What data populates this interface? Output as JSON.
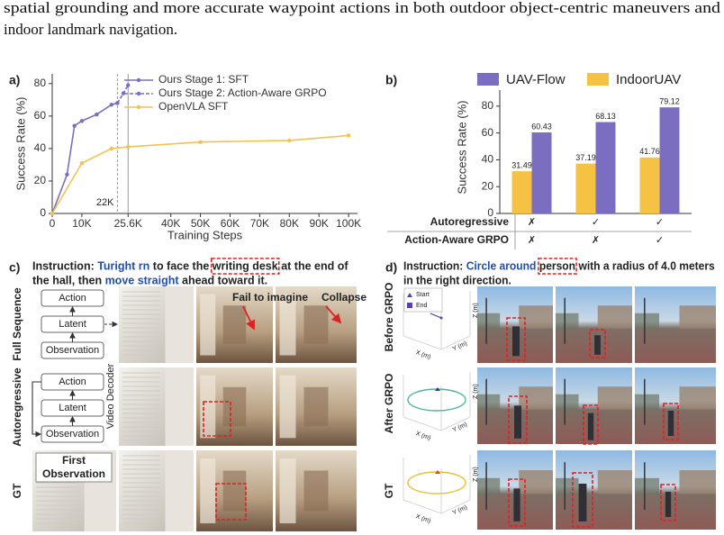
{
  "text": {
    "lines": [
      "spatial grounding and more accurate waypoint actions in both outdoor object-centric maneuvers and",
      "indoor landmark navigation."
    ]
  },
  "chart_data": [
    {
      "type": "line",
      "label": "a)",
      "xlabel": "Training Steps",
      "ylabel": "Success Rate (%)",
      "series": [
        {
          "name": "Ours Stage 1: SFT",
          "color": "#7b6ec0",
          "style": "solid",
          "x": [
            0,
            5000,
            7500,
            10000,
            15000,
            20000,
            22000
          ],
          "values": [
            0,
            24,
            54,
            57,
            61,
            67,
            68
          ]
        },
        {
          "name": "Ours Stage 2: Action-Aware GRPO",
          "color": "#7b6ec0",
          "style": "dashed",
          "x": [
            22000,
            24000,
            25600
          ],
          "values": [
            68,
            74,
            79
          ]
        },
        {
          "name": "OpenVLA SFT",
          "color": "#f3c14d",
          "style": "solid",
          "x": [
            0,
            10000,
            20000,
            25600,
            50000,
            80000,
            100000
          ],
          "values": [
            0,
            31,
            40,
            41,
            44,
            45,
            48
          ]
        }
      ],
      "xlim": [
        0,
        103000
      ],
      "ylim": [
        0,
        86
      ],
      "xticks": [
        0,
        {
          "value": 10000,
          "label": "10K"
        },
        {
          "value": 25600,
          "label": "25.6K"
        },
        {
          "value": 40000,
          "label": "40K"
        },
        {
          "value": 50000,
          "label": "50K"
        },
        {
          "value": 60000,
          "label": "60K"
        },
        {
          "value": 70000,
          "label": "70K"
        },
        {
          "value": 80000,
          "label": "80K"
        },
        {
          "value": 90000,
          "label": "90K"
        },
        {
          "value": 100000,
          "label": "100K"
        }
      ],
      "yticks": [
        0,
        20,
        40,
        60,
        80
      ],
      "vlines": [
        {
          "value": 22000,
          "style": "dashed",
          "label": "22K"
        },
        {
          "value": 25600,
          "style": "solid"
        }
      ],
      "legend": "top"
    },
    {
      "type": "bar",
      "label": "b)",
      "ylabel": "Success Rate (%)",
      "categories": [
        null,
        null,
        null
      ],
      "series": [
        {
          "name": "UAV-Flow",
          "color": "#7b6ec0",
          "values": [
            60.43,
            68.13,
            79.12
          ]
        },
        {
          "name": "IndoorUAV",
          "color": "#f6c244",
          "values": [
            31.49,
            37.19,
            41.76
          ]
        }
      ],
      "ylim": [
        0,
        92
      ],
      "yticks": [
        0,
        20,
        40,
        60,
        80
      ],
      "legend": "top",
      "table": {
        "rows": [
          {
            "label": "Autoregressive",
            "cells": [
              "✗",
              "✓",
              "✓"
            ],
            "colors": [
              "#d62728",
              "#2ca02c",
              "#2ca02c"
            ]
          },
          {
            "label": "Action-Aware GRPO",
            "cells": [
              "✗",
              "✗",
              "✓"
            ],
            "colors": [
              "#d62728",
              "#d62728",
              "#2ca02c"
            ]
          }
        ]
      }
    }
  ],
  "panel_c": {
    "label": "c)",
    "instruction": [
      [
        {
          "text": "Instruction: ",
          "style": "plain"
        },
        {
          "text": "Turight rn",
          "style": "blue"
        },
        {
          "text": " to face the ",
          "style": "plain"
        },
        {
          "text": "writing desk",
          "style": "boxed"
        },
        {
          "text": " at the end of",
          "style": "plain"
        }
      ],
      [
        {
          "text": "the hall, then ",
          "style": "plain"
        },
        {
          "text": "move straight",
          "style": "blue"
        },
        {
          "text": " ahead toward it.",
          "style": "plain"
        }
      ]
    ],
    "rows": [
      "Full Sequence",
      "Autoregressive",
      "GT"
    ],
    "boxes": [
      "Action",
      "Latent",
      "Observation"
    ],
    "decoder": "Video Decoder",
    "annotations": [
      "Fail to imagine",
      "Collapse"
    ],
    "first_observation": [
      "First",
      "Observation"
    ]
  },
  "panel_d": {
    "label": "d)",
    "instruction": [
      [
        {
          "text": "Instruction: ",
          "style": "plain"
        },
        {
          "text": "Circle around",
          "style": "blue"
        },
        {
          "text": " ",
          "style": "plain"
        },
        {
          "text": "person",
          "style": "boxed"
        },
        {
          "text": " with a radius of 4.0 meters",
          "style": "plain"
        }
      ],
      [
        {
          "text": "in the right direction.",
          "style": "plain"
        }
      ]
    ],
    "rows": [
      "Before GRPO",
      "After GRPO",
      "GT"
    ],
    "plot_axes": [
      "X (m)",
      "Y (m)",
      "Z (m)"
    ],
    "legend": [
      "Start",
      "End"
    ]
  }
}
